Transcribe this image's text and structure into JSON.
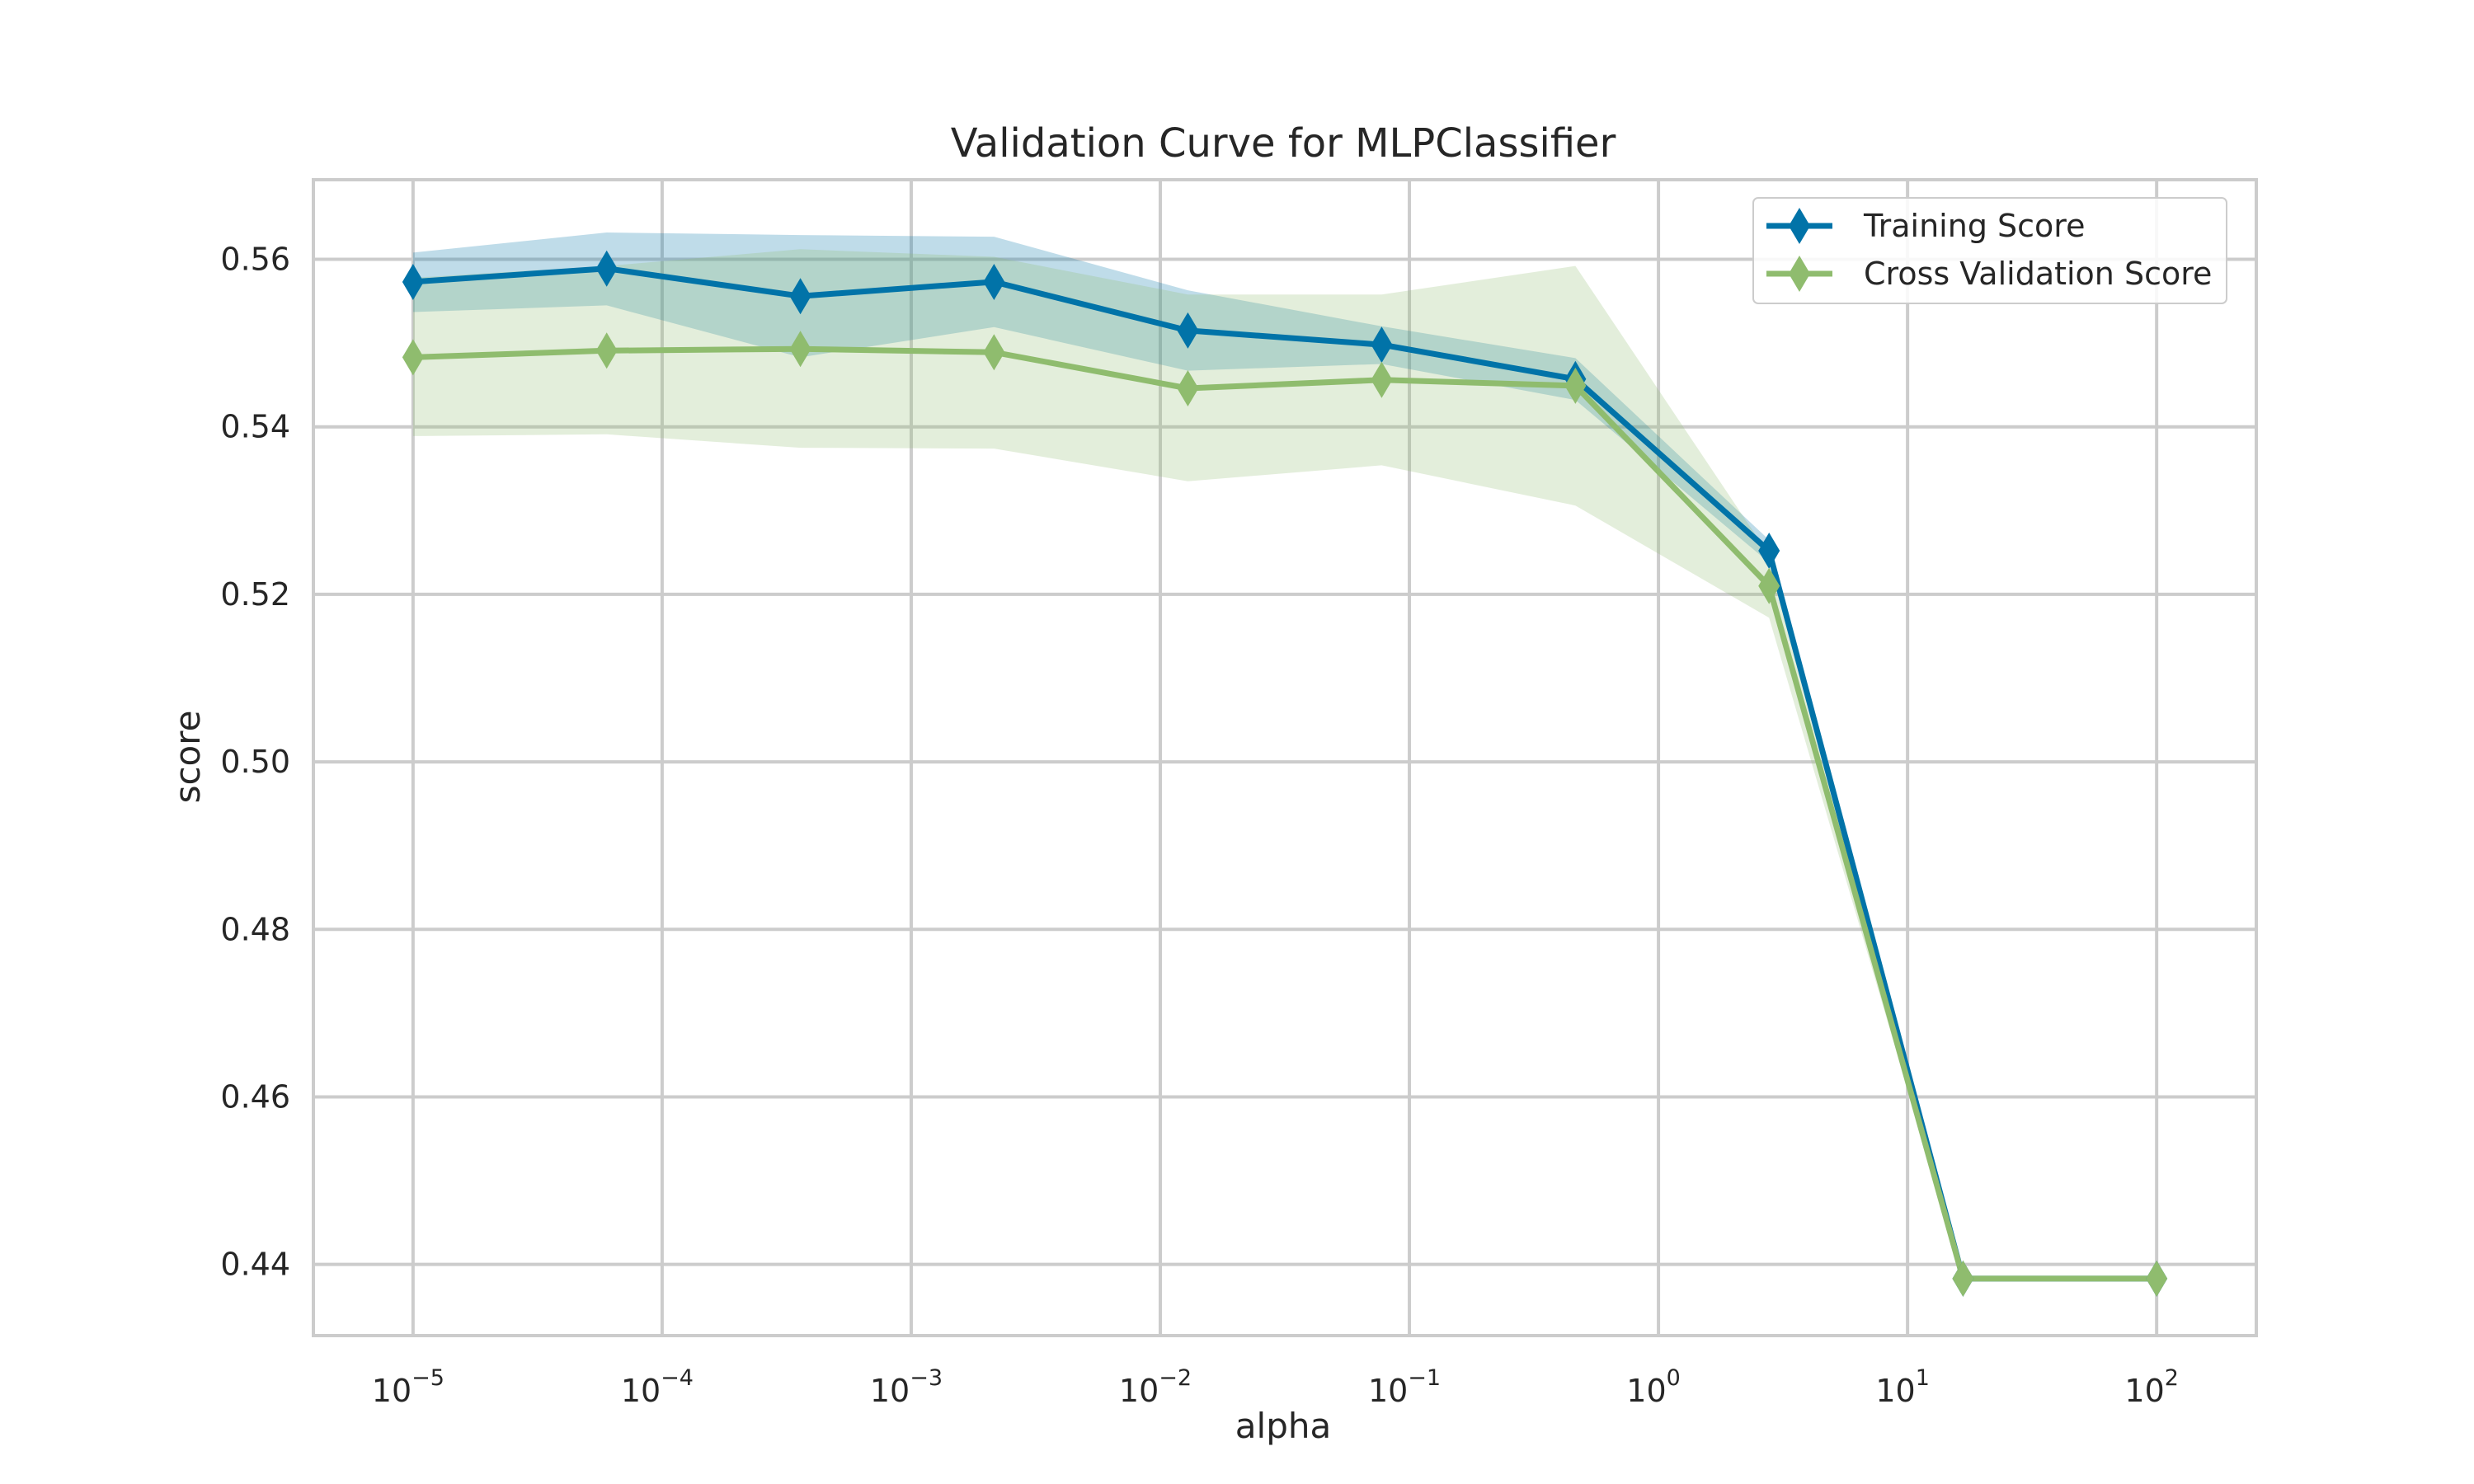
{
  "chart_data": {
    "type": "line",
    "title": "Validation Curve for MLPClassifier",
    "xlabel": "alpha",
    "ylabel": "score",
    "xscale": "log",
    "xlim": [
      3.98e-06,
      251.2
    ],
    "ylim": [
      0.4315,
      0.5695
    ],
    "grid": true,
    "legend_position": "top-right",
    "x": [
      1e-05,
      5.99e-05,
      0.000359,
      0.00215,
      0.0129,
      0.0774,
      0.464,
      2.78,
      16.7,
      100
    ],
    "yticks": [
      0.44,
      0.46,
      0.48,
      0.5,
      0.52,
      0.54,
      0.56
    ],
    "ytick_labels": [
      "0.44",
      "0.46",
      "0.48",
      "0.50",
      "0.52",
      "0.54",
      "0.56"
    ],
    "xticks": [
      {
        "value": 1e-05,
        "base": "10",
        "exp": "−5"
      },
      {
        "value": 0.0001,
        "base": "10",
        "exp": "−4"
      },
      {
        "value": 0.001,
        "base": "10",
        "exp": "−3"
      },
      {
        "value": 0.01,
        "base": "10",
        "exp": "−2"
      },
      {
        "value": 0.1,
        "base": "10",
        "exp": "−1"
      },
      {
        "value": 1,
        "base": "10",
        "exp": "0"
      },
      {
        "value": 10,
        "base": "10",
        "exp": "1"
      },
      {
        "value": 100,
        "base": "10",
        "exp": "2"
      }
    ],
    "series": [
      {
        "name": "Training Score",
        "color": "#0173a8",
        "band_color": "#0173a8",
        "values": [
          0.5573,
          0.5589,
          0.5556,
          0.5573,
          0.5515,
          0.5498,
          0.5457,
          0.5252,
          0.4383,
          0.4383
        ],
        "upper": [
          0.5608,
          0.5632,
          0.5629,
          0.5627,
          0.5563,
          0.552,
          0.5482,
          0.5265,
          0.4383,
          0.4383
        ],
        "lower": [
          0.5537,
          0.5545,
          0.5483,
          0.5519,
          0.5467,
          0.5475,
          0.5432,
          0.5238,
          0.4383,
          0.4383
        ]
      },
      {
        "name": "Cross Validation Score",
        "color": "#8fbc6e",
        "band_color": "#8fbc6e",
        "values": [
          0.5483,
          0.5491,
          0.5493,
          0.5489,
          0.5446,
          0.5456,
          0.5449,
          0.521,
          0.4383,
          0.4383
        ],
        "upper": [
          0.5578,
          0.5592,
          0.5612,
          0.5603,
          0.5558,
          0.5558,
          0.5592,
          0.5247,
          0.4383,
          0.4383
        ],
        "lower": [
          0.5389,
          0.5391,
          0.5375,
          0.5374,
          0.5335,
          0.5354,
          0.5306,
          0.5172,
          0.4383,
          0.4383
        ]
      }
    ]
  }
}
